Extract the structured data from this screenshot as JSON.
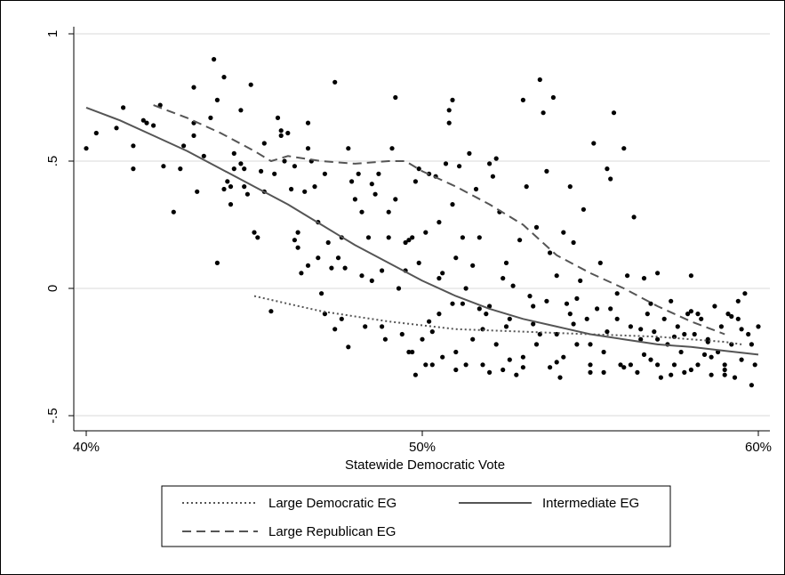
{
  "chart_data": {
    "type": "scatter",
    "title": "",
    "xlabel": "Statewide Democratic Vote",
    "ylabel": "",
    "xlim": [
      0.4,
      0.6
    ],
    "ylim": [
      -0.55,
      1.05
    ],
    "x_ticks": [
      {
        "value": 0.4,
        "label": "40%"
      },
      {
        "value": 0.5,
        "label": "50%"
      },
      {
        "value": 0.6,
        "label": "60%"
      }
    ],
    "y_ticks": [
      {
        "value": -0.5,
        "label": "-.5"
      },
      {
        "value": 0.0,
        "label": "0"
      },
      {
        "value": 0.5,
        "label": ".5"
      },
      {
        "value": 1.0,
        "label": "1"
      }
    ],
    "grid": "horizontal",
    "legend_position": "bottom",
    "legend": [
      {
        "label": "Large Democratic EG",
        "style": "dotted"
      },
      {
        "label": "Intermediate EG",
        "style": "solid"
      },
      {
        "label": "Large Republican EG",
        "style": "dashed"
      }
    ],
    "series": [
      {
        "name": "Large Democratic EG",
        "style": "dotted",
        "color": "#555555",
        "x": [
          0.45,
          0.46,
          0.47,
          0.48,
          0.49,
          0.5,
          0.51,
          0.52,
          0.53,
          0.54,
          0.55,
          0.56,
          0.57,
          0.58,
          0.59,
          0.595
        ],
        "y": [
          -0.03,
          -0.06,
          -0.09,
          -0.11,
          -0.13,
          -0.145,
          -0.16,
          -0.165,
          -0.17,
          -0.175,
          -0.18,
          -0.185,
          -0.19,
          -0.2,
          -0.21,
          -0.22
        ]
      },
      {
        "name": "Intermediate EG",
        "style": "solid",
        "color": "#555555",
        "x": [
          0.4,
          0.41,
          0.42,
          0.43,
          0.44,
          0.45,
          0.46,
          0.47,
          0.48,
          0.49,
          0.5,
          0.51,
          0.52,
          0.53,
          0.54,
          0.55,
          0.56,
          0.57,
          0.58,
          0.59,
          0.6
        ],
        "y": [
          0.71,
          0.66,
          0.6,
          0.54,
          0.47,
          0.4,
          0.33,
          0.25,
          0.17,
          0.1,
          0.03,
          -0.03,
          -0.08,
          -0.12,
          -0.15,
          -0.18,
          -0.2,
          -0.22,
          -0.23,
          -0.245,
          -0.26
        ]
      },
      {
        "name": "Large Republican EG",
        "style": "dashed",
        "color": "#555555",
        "x": [
          0.42,
          0.43,
          0.44,
          0.45,
          0.455,
          0.46,
          0.47,
          0.48,
          0.49,
          0.495,
          0.5,
          0.51,
          0.52,
          0.53,
          0.54,
          0.55,
          0.56,
          0.57,
          0.58,
          0.59
        ],
        "y": [
          0.72,
          0.67,
          0.61,
          0.54,
          0.5,
          0.52,
          0.5,
          0.49,
          0.5,
          0.5,
          0.46,
          0.4,
          0.33,
          0.25,
          0.13,
          0.06,
          0.0,
          -0.07,
          -0.13,
          -0.18
        ]
      }
    ],
    "points": [
      [
        0.4,
        0.55
      ],
      [
        0.403,
        0.61
      ],
      [
        0.409,
        0.63
      ],
      [
        0.411,
        0.71
      ],
      [
        0.414,
        0.56
      ],
      [
        0.414,
        0.47
      ],
      [
        0.417,
        0.66
      ],
      [
        0.418,
        0.65
      ],
      [
        0.42,
        0.64
      ],
      [
        0.422,
        0.72
      ],
      [
        0.423,
        0.48
      ],
      [
        0.426,
        0.3
      ],
      [
        0.428,
        0.47
      ],
      [
        0.429,
        0.56
      ],
      [
        0.432,
        0.6
      ],
      [
        0.432,
        0.65
      ],
      [
        0.432,
        0.79
      ],
      [
        0.433,
        0.38
      ],
      [
        0.435,
        0.52
      ],
      [
        0.437,
        0.67
      ],
      [
        0.438,
        0.9
      ],
      [
        0.439,
        0.74
      ],
      [
        0.439,
        0.1
      ],
      [
        0.441,
        0.39
      ],
      [
        0.441,
        0.83
      ],
      [
        0.442,
        0.42
      ],
      [
        0.443,
        0.4
      ],
      [
        0.443,
        0.33
      ],
      [
        0.444,
        0.53
      ],
      [
        0.444,
        0.47
      ],
      [
        0.446,
        0.7
      ],
      [
        0.446,
        0.49
      ],
      [
        0.447,
        0.4
      ],
      [
        0.447,
        0.47
      ],
      [
        0.448,
        0.37
      ],
      [
        0.449,
        0.8
      ],
      [
        0.45,
        0.22
      ],
      [
        0.451,
        0.2
      ],
      [
        0.452,
        0.46
      ],
      [
        0.453,
        0.57
      ],
      [
        0.455,
        -0.09
      ],
      [
        0.456,
        0.45
      ],
      [
        0.457,
        0.67
      ],
      [
        0.458,
        0.6
      ],
      [
        0.458,
        0.62
      ],
      [
        0.459,
        0.5
      ],
      [
        0.46,
        0.61
      ],
      [
        0.461,
        0.39
      ],
      [
        0.462,
        0.48
      ],
      [
        0.463,
        0.22
      ],
      [
        0.463,
        0.16
      ],
      [
        0.464,
        0.06
      ],
      [
        0.465,
        0.38
      ],
      [
        0.466,
        0.65
      ],
      [
        0.466,
        0.55
      ],
      [
        0.466,
        0.09
      ],
      [
        0.467,
        0.5
      ],
      [
        0.468,
        0.4
      ],
      [
        0.469,
        0.26
      ],
      [
        0.469,
        0.12
      ],
      [
        0.47,
        -0.02
      ],
      [
        0.471,
        -0.1
      ],
      [
        0.472,
        0.18
      ],
      [
        0.473,
        0.08
      ],
      [
        0.474,
        0.81
      ],
      [
        0.475,
        0.12
      ],
      [
        0.476,
        0.2
      ],
      [
        0.476,
        -0.12
      ],
      [
        0.477,
        0.08
      ],
      [
        0.478,
        -0.23
      ],
      [
        0.479,
        0.42
      ],
      [
        0.48,
        0.35
      ],
      [
        0.481,
        0.45
      ],
      [
        0.482,
        0.3
      ],
      [
        0.482,
        0.05
      ],
      [
        0.483,
        -0.15
      ],
      [
        0.484,
        0.2
      ],
      [
        0.485,
        0.41
      ],
      [
        0.486,
        0.37
      ],
      [
        0.487,
        0.45
      ],
      [
        0.488,
        -0.15
      ],
      [
        0.488,
        0.07
      ],
      [
        0.489,
        -0.2
      ],
      [
        0.49,
        0.3
      ],
      [
        0.491,
        0.55
      ],
      [
        0.492,
        0.75
      ],
      [
        0.492,
        0.35
      ],
      [
        0.493,
        0.0
      ],
      [
        0.494,
        -0.18
      ],
      [
        0.495,
        0.07
      ],
      [
        0.496,
        0.19
      ],
      [
        0.496,
        -0.25
      ],
      [
        0.497,
        0.2
      ],
      [
        0.497,
        -0.25
      ],
      [
        0.498,
        0.42
      ],
      [
        0.499,
        0.47
      ],
      [
        0.499,
        0.1
      ],
      [
        0.5,
        -0.2
      ],
      [
        0.501,
        0.22
      ],
      [
        0.502,
        0.45
      ],
      [
        0.502,
        -0.13
      ],
      [
        0.503,
        -0.3
      ],
      [
        0.504,
        0.44
      ],
      [
        0.505,
        0.26
      ],
      [
        0.505,
        0.04
      ],
      [
        0.506,
        -0.27
      ],
      [
        0.507,
        0.49
      ],
      [
        0.508,
        0.65
      ],
      [
        0.508,
        0.7
      ],
      [
        0.509,
        0.74
      ],
      [
        0.509,
        0.33
      ],
      [
        0.51,
        0.12
      ],
      [
        0.51,
        -0.25
      ],
      [
        0.511,
        0.48
      ],
      [
        0.512,
        0.2
      ],
      [
        0.512,
        -0.06
      ],
      [
        0.513,
        -0.3
      ],
      [
        0.514,
        0.53
      ],
      [
        0.515,
        0.09
      ],
      [
        0.516,
        0.39
      ],
      [
        0.517,
        0.2
      ],
      [
        0.517,
        -0.08
      ],
      [
        0.518,
        -0.3
      ],
      [
        0.519,
        -0.1
      ],
      [
        0.52,
        0.49
      ],
      [
        0.521,
        0.44
      ],
      [
        0.522,
        0.51
      ],
      [
        0.523,
        0.3
      ],
      [
        0.524,
        0.04
      ],
      [
        0.524,
        -0.32
      ],
      [
        0.525,
        0.1
      ],
      [
        0.526,
        -0.28
      ],
      [
        0.527,
        0.01
      ],
      [
        0.528,
        -0.34
      ],
      [
        0.529,
        0.19
      ],
      [
        0.53,
        0.74
      ],
      [
        0.531,
        0.4
      ],
      [
        0.532,
        -0.03
      ],
      [
        0.533,
        -0.14
      ],
      [
        0.534,
        0.24
      ],
      [
        0.535,
        0.82
      ],
      [
        0.536,
        0.69
      ],
      [
        0.537,
        0.46
      ],
      [
        0.537,
        -0.05
      ],
      [
        0.538,
        0.14
      ],
      [
        0.539,
        0.75
      ],
      [
        0.54,
        0.05
      ],
      [
        0.54,
        -0.18
      ],
      [
        0.541,
        -0.35
      ],
      [
        0.542,
        0.22
      ],
      [
        0.543,
        -0.06
      ],
      [
        0.544,
        0.4
      ],
      [
        0.545,
        0.18
      ],
      [
        0.546,
        -0.22
      ],
      [
        0.547,
        0.03
      ],
      [
        0.548,
        0.31
      ],
      [
        0.549,
        -0.12
      ],
      [
        0.55,
        -0.3
      ],
      [
        0.551,
        0.57
      ],
      [
        0.552,
        -0.08
      ],
      [
        0.553,
        0.1
      ],
      [
        0.554,
        -0.25
      ],
      [
        0.555,
        0.47
      ],
      [
        0.556,
        0.43
      ],
      [
        0.557,
        0.69
      ],
      [
        0.558,
        -0.02
      ],
      [
        0.559,
        -0.3
      ],
      [
        0.56,
        0.55
      ],
      [
        0.561,
        0.05
      ],
      [
        0.562,
        -0.15
      ],
      [
        0.563,
        0.28
      ],
      [
        0.564,
        -0.33
      ],
      [
        0.565,
        -0.2
      ],
      [
        0.566,
        0.04
      ],
      [
        0.567,
        -0.1
      ],
      [
        0.568,
        -0.28
      ],
      [
        0.569,
        -0.17
      ],
      [
        0.57,
        0.06
      ],
      [
        0.571,
        -0.35
      ],
      [
        0.572,
        -0.12
      ],
      [
        0.573,
        -0.22
      ],
      [
        0.574,
        -0.05
      ],
      [
        0.575,
        -0.3
      ],
      [
        0.576,
        -0.15
      ],
      [
        0.577,
        -0.25
      ],
      [
        0.578,
        -0.33
      ],
      [
        0.579,
        -0.1
      ],
      [
        0.58,
        0.05
      ],
      [
        0.581,
        -0.18
      ],
      [
        0.582,
        -0.3
      ],
      [
        0.583,
        -0.12
      ],
      [
        0.584,
        -0.26
      ],
      [
        0.585,
        -0.2
      ],
      [
        0.586,
        -0.34
      ],
      [
        0.587,
        -0.07
      ],
      [
        0.588,
        -0.25
      ],
      [
        0.589,
        -0.15
      ],
      [
        0.59,
        -0.3
      ],
      [
        0.591,
        -0.1
      ],
      [
        0.592,
        -0.22
      ],
      [
        0.593,
        -0.35
      ],
      [
        0.594,
        -0.05
      ],
      [
        0.595,
        -0.28
      ],
      [
        0.596,
        -0.02
      ],
      [
        0.597,
        -0.18
      ],
      [
        0.598,
        -0.38
      ],
      [
        0.599,
        -0.3
      ],
      [
        0.6,
        -0.15
      ],
      [
        0.453,
        0.38
      ],
      [
        0.462,
        0.19
      ],
      [
        0.471,
        0.45
      ],
      [
        0.474,
        -0.16
      ],
      [
        0.478,
        0.55
      ],
      [
        0.485,
        0.03
      ],
      [
        0.49,
        0.2
      ],
      [
        0.495,
        0.18
      ],
      [
        0.498,
        -0.34
      ],
      [
        0.503,
        -0.17
      ],
      [
        0.506,
        0.06
      ],
      [
        0.509,
        -0.06
      ],
      [
        0.513,
        0.0
      ],
      [
        0.518,
        -0.16
      ],
      [
        0.522,
        -0.22
      ],
      [
        0.526,
        -0.12
      ],
      [
        0.53,
        -0.27
      ],
      [
        0.534,
        -0.22
      ],
      [
        0.538,
        -0.31
      ],
      [
        0.542,
        -0.27
      ],
      [
        0.546,
        -0.04
      ],
      [
        0.55,
        -0.22
      ],
      [
        0.554,
        -0.33
      ],
      [
        0.558,
        -0.12
      ],
      [
        0.562,
        -0.3
      ],
      [
        0.566,
        -0.26
      ],
      [
        0.57,
        -0.2
      ],
      [
        0.574,
        -0.34
      ],
      [
        0.578,
        -0.18
      ],
      [
        0.582,
        -0.1
      ],
      [
        0.586,
        -0.27
      ],
      [
        0.59,
        -0.32
      ],
      [
        0.594,
        -0.12
      ],
      [
        0.598,
        -0.22
      ],
      [
        0.501,
        -0.3
      ],
      [
        0.51,
        -0.32
      ],
      [
        0.52,
        -0.33
      ],
      [
        0.53,
        -0.31
      ],
      [
        0.54,
        -0.29
      ],
      [
        0.55,
        -0.33
      ],
      [
        0.56,
        -0.31
      ],
      [
        0.57,
        -0.3
      ],
      [
        0.58,
        -0.32
      ],
      [
        0.59,
        -0.34
      ],
      [
        0.515,
        -0.2
      ],
      [
        0.525,
        -0.15
      ],
      [
        0.535,
        -0.18
      ],
      [
        0.545,
        -0.14
      ],
      [
        0.555,
        -0.17
      ],
      [
        0.565,
        -0.16
      ],
      [
        0.575,
        -0.19
      ],
      [
        0.585,
        -0.21
      ],
      [
        0.595,
        -0.16
      ],
      [
        0.505,
        -0.1
      ],
      [
        0.52,
        -0.07
      ],
      [
        0.533,
        -0.07
      ],
      [
        0.544,
        -0.1
      ],
      [
        0.556,
        -0.08
      ],
      [
        0.568,
        -0.06
      ],
      [
        0.58,
        -0.09
      ],
      [
        0.592,
        -0.11
      ]
    ]
  }
}
